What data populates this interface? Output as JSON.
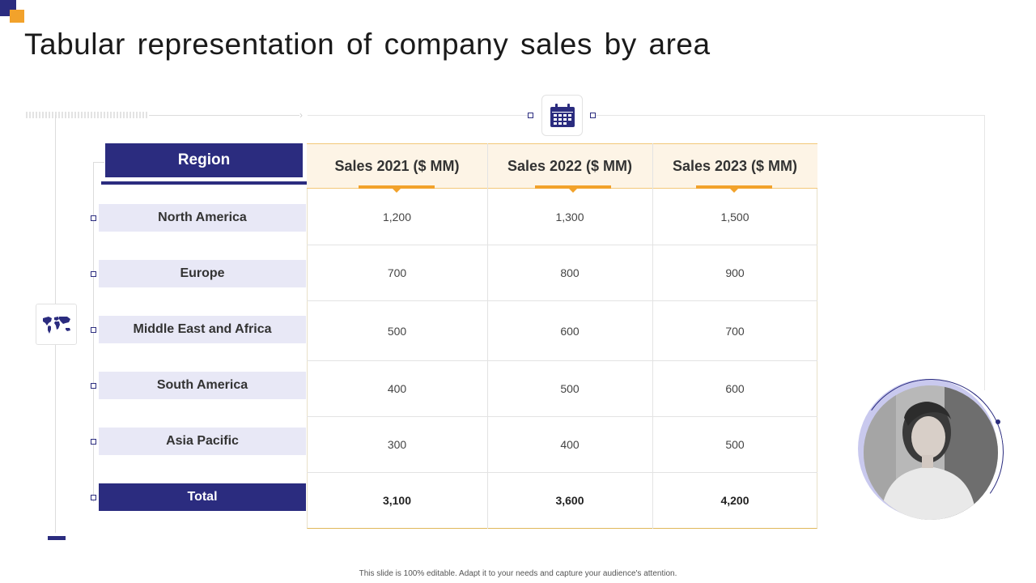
{
  "title": "Tabular representation of company sales by area",
  "table": {
    "region_header": "Region",
    "headers": [
      "Sales 2021 ($ MM)",
      "Sales 2022 ($ MM)",
      "Sales 2023 ($ MM)"
    ],
    "rows": [
      {
        "label": "North America",
        "values": [
          "1,200",
          "1,300",
          "1,500"
        ]
      },
      {
        "label": "Europe",
        "values": [
          "700",
          "800",
          "900"
        ]
      },
      {
        "label": "Middle East and Africa",
        "values": [
          "500",
          "600",
          "700"
        ]
      },
      {
        "label": "South America",
        "values": [
          "400",
          "500",
          "600"
        ]
      },
      {
        "label": "Asia Pacific",
        "values": [
          "300",
          "400",
          "500"
        ]
      },
      {
        "label": "Total",
        "values": [
          "3,100",
          "3,600",
          "4,200"
        ]
      }
    ]
  },
  "icons": {
    "calendar": "calendar-icon",
    "map": "world-map-icon"
  },
  "colors": {
    "primary": "#2b2c7f",
    "accent": "#f2a22b",
    "row_bg": "#e8e8f6",
    "header_bg": "#fdf4e6"
  },
  "footer": "This slide is 100% editable. Adapt it to your needs and capture your audience's attention."
}
